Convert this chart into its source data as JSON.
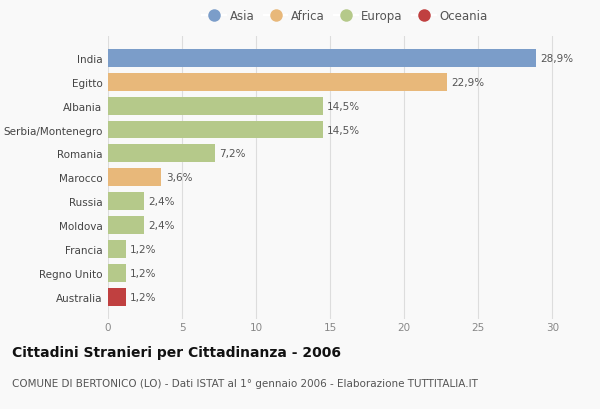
{
  "categories": [
    "India",
    "Egitto",
    "Albania",
    "Serbia/Montenegro",
    "Romania",
    "Marocco",
    "Russia",
    "Moldova",
    "Francia",
    "Regno Unito",
    "Australia"
  ],
  "values": [
    28.9,
    22.9,
    14.5,
    14.5,
    7.2,
    3.6,
    2.4,
    2.4,
    1.2,
    1.2,
    1.2
  ],
  "labels": [
    "28,9%",
    "22,9%",
    "14,5%",
    "14,5%",
    "7,2%",
    "3,6%",
    "2,4%",
    "2,4%",
    "1,2%",
    "1,2%",
    "1,2%"
  ],
  "continents": [
    "Asia",
    "Africa",
    "Europa",
    "Europa",
    "Europa",
    "Africa",
    "Europa",
    "Europa",
    "Europa",
    "Europa",
    "Oceania"
  ],
  "colors": {
    "Asia": "#7b9dc9",
    "Africa": "#e8b87a",
    "Europa": "#b5c98a",
    "Oceania": "#c04040"
  },
  "legend_order": [
    "Asia",
    "Africa",
    "Europa",
    "Oceania"
  ],
  "xlim": [
    0,
    32
  ],
  "xticks": [
    0,
    5,
    10,
    15,
    20,
    25,
    30
  ],
  "title": "Cittadini Stranieri per Cittadinanza - 2006",
  "subtitle": "COMUNE DI BERTONICO (LO) - Dati ISTAT al 1° gennaio 2006 - Elaborazione TUTTITALIA.IT",
  "bg_color": "#f9f9f9",
  "bar_height": 0.75,
  "title_fontsize": 10,
  "subtitle_fontsize": 7.5,
  "label_fontsize": 7.5,
  "tick_fontsize": 7.5,
  "legend_fontsize": 8.5
}
